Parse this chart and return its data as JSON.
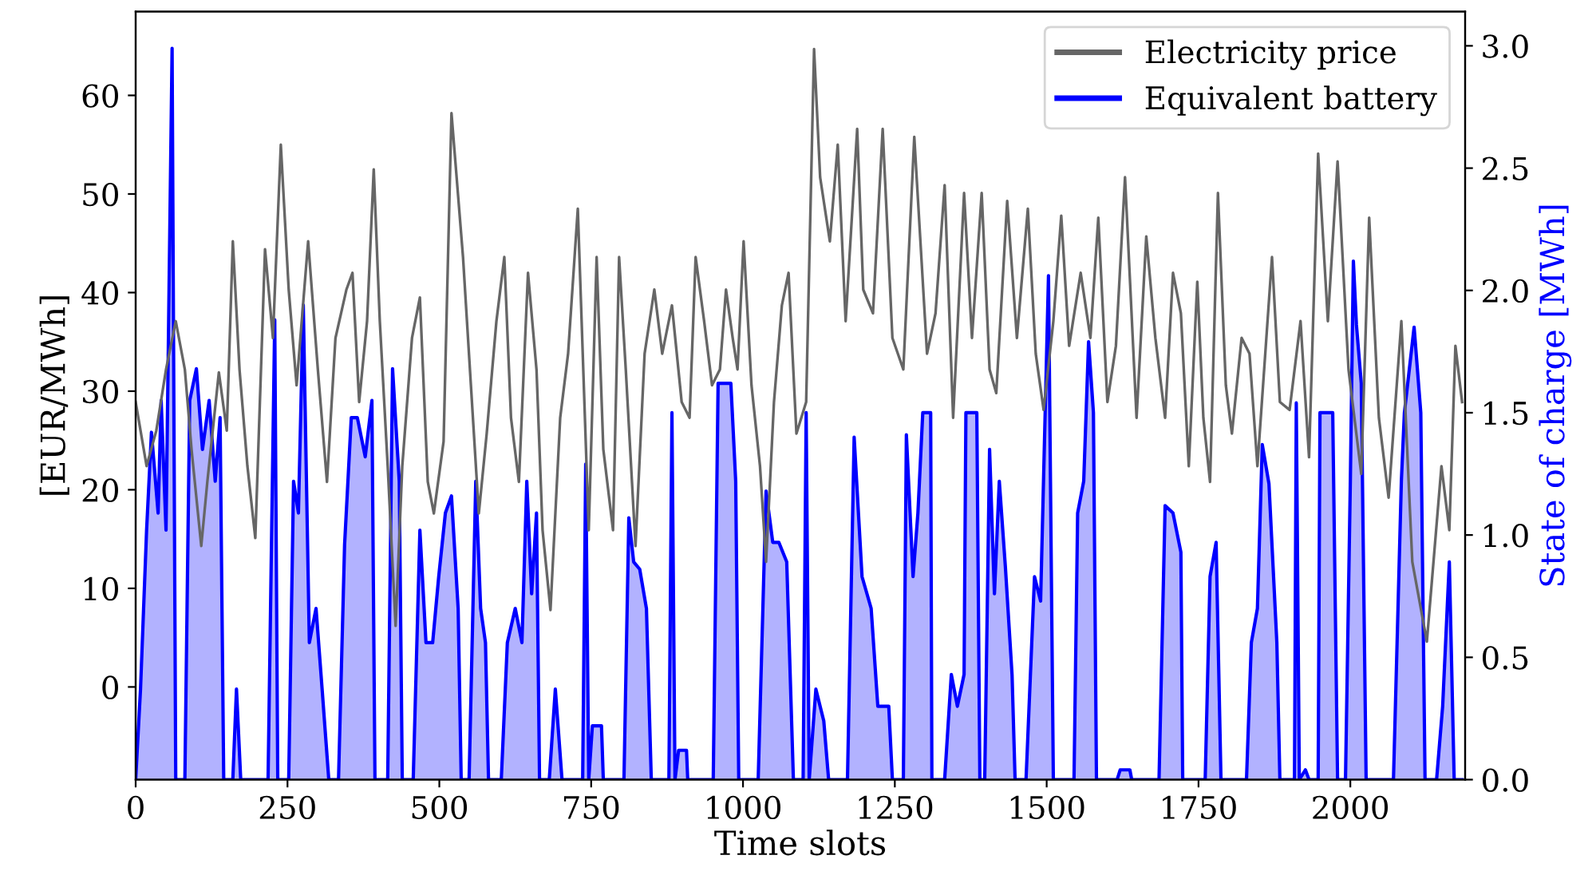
{
  "chart_data": {
    "type": "line",
    "xlabel": "Time slots",
    "ylabel": "[EUR/MWh]",
    "y2label": "State of charge [MWh]",
    "legend": "top right",
    "grid": false,
    "xlim": [
      0,
      2189
    ],
    "xticks": [
      0,
      250,
      500,
      750,
      1000,
      1250,
      1500,
      1750,
      2000
    ],
    "ylim": [
      -9.4,
      68.5
    ],
    "yticks": [
      0,
      10,
      20,
      30,
      40,
      50,
      60
    ],
    "y2lim": [
      0,
      3.14
    ],
    "y2ticks": [
      {
        "value": 0,
        "label": "0.0"
      },
      {
        "value": 0.5,
        "label": "0.5"
      },
      {
        "value": 1,
        "label": "1.0"
      },
      {
        "value": 1.5,
        "label": "1.5"
      },
      {
        "value": 2,
        "label": "2.0"
      },
      {
        "value": 2.5,
        "label": "2.5"
      },
      {
        "value": 3,
        "label": "3.0"
      }
    ],
    "series": [
      {
        "name": "Electricity price",
        "color": "#666666",
        "x": [
          0,
          18,
          34,
          50,
          66,
          81,
          92,
          108,
          118,
          137,
          150,
          160,
          171,
          184,
          197,
          213,
          226,
          239,
          252,
          265,
          284,
          300,
          315,
          329,
          347,
          357,
          368,
          381,
          392,
          402,
          415,
          428,
          439,
          455,
          468,
          481,
          491,
          507,
          520,
          539,
          552,
          565,
          578,
          594,
          607,
          618,
          631,
          646,
          660,
          670,
          683,
          699,
          712,
          728,
          746,
          759,
          770,
          786,
          796,
          807,
          823,
          838,
          854,
          867,
          883,
          899,
          912,
          922,
          936,
          949,
          962,
          972,
          983,
          991,
          1001,
          1014,
          1028,
          1038,
          1051,
          1064,
          1075,
          1088,
          1104,
          1117,
          1127,
          1143,
          1156,
          1169,
          1188,
          1198,
          1214,
          1230,
          1246,
          1264,
          1282,
          1303,
          1317,
          1332,
          1346,
          1364,
          1377,
          1393,
          1406,
          1417,
          1435,
          1451,
          1469,
          1482,
          1495,
          1511,
          1524,
          1537,
          1556,
          1572,
          1585,
          1600,
          1614,
          1629,
          1648,
          1664,
          1679,
          1695,
          1708,
          1721,
          1734,
          1748,
          1758,
          1769,
          1782,
          1795,
          1805,
          1821,
          1834,
          1847,
          1871,
          1884,
          1900,
          1918,
          1932,
          1947,
          1963,
          1979,
          1997,
          2018,
          2031,
          2047,
          2063,
          2084,
          2102,
          2126,
          2150,
          2163,
          2173,
          2184
        ],
        "values": [
          28.9,
          22.4,
          26.0,
          32.2,
          37.1,
          32.2,
          24.1,
          14.3,
          20.8,
          31.9,
          26.0,
          45.2,
          32.2,
          22.4,
          15.1,
          44.4,
          35.4,
          55.0,
          40.3,
          30.6,
          45.2,
          32.2,
          20.8,
          35.4,
          40.3,
          42.0,
          28.9,
          37.1,
          52.5,
          37.1,
          22.4,
          6.2,
          22.4,
          35.4,
          39.5,
          20.8,
          17.6,
          24.9,
          58.2,
          43.6,
          30.6,
          17.6,
          25.7,
          37.1,
          43.6,
          27.3,
          20.8,
          42.0,
          32.2,
          15.9,
          7.8,
          27.3,
          33.8,
          48.5,
          15.9,
          43.6,
          24.1,
          15.9,
          43.6,
          32.2,
          14.3,
          33.8,
          40.3,
          33.8,
          38.7,
          28.9,
          27.3,
          43.6,
          37.1,
          30.6,
          32.2,
          40.3,
          35.4,
          32.2,
          45.2,
          30.6,
          22.4,
          12.7,
          28.9,
          38.7,
          42.0,
          25.7,
          28.9,
          64.7,
          51.7,
          45.2,
          55.0,
          37.1,
          56.6,
          40.3,
          37.9,
          56.6,
          35.4,
          32.2,
          55.8,
          33.8,
          37.9,
          50.9,
          27.3,
          50.1,
          35.4,
          50.1,
          32.2,
          29.8,
          49.3,
          35.4,
          48.5,
          33.8,
          28.1,
          37.1,
          47.8,
          34.6,
          42.0,
          35.4,
          47.6,
          28.9,
          34.6,
          51.7,
          27.3,
          45.7,
          35.4,
          27.3,
          42.0,
          37.9,
          22.4,
          41.1,
          27.3,
          20.8,
          50.1,
          30.6,
          25.7,
          35.4,
          33.8,
          22.4,
          43.6,
          28.9,
          28.1,
          37.1,
          23.3,
          54.1,
          37.1,
          53.3,
          32.2,
          21.6,
          47.6,
          27.3,
          19.2,
          37.1,
          12.7,
          4.6,
          22.4,
          15.9,
          34.6,
          28.9
        ]
      },
      {
        "name": "Equivalent battery",
        "type": "area",
        "axis": "y2",
        "color": "#0000ff",
        "x": [
          0,
          8,
          18,
          26,
          37,
          42,
          50,
          55,
          60,
          66,
          81,
          89,
          100,
          110,
          121,
          131,
          139,
          145,
          160,
          166,
          173,
          218,
          229,
          234,
          252,
          260,
          268,
          276,
          286,
          297,
          307,
          318,
          334,
          344,
          355,
          365,
          378,
          389,
          394,
          415,
          423,
          434,
          439,
          457,
          468,
          478,
          489,
          499,
          510,
          520,
          531,
          536,
          549,
          560,
          568,
          576,
          581,
          602,
          612,
          625,
          636,
          644,
          652,
          660,
          665,
          681,
          691,
          702,
          736,
          741,
          746,
          752,
          767,
          770,
          804,
          812,
          820,
          830,
          841,
          849,
          878,
          883,
          888,
          894,
          907,
          909,
          951,
          959,
          980,
          988,
          993,
          1025,
          1038,
          1049,
          1059,
          1072,
          1083,
          1099,
          1104,
          1109,
          1120,
          1133,
          1141,
          1172,
          1183,
          1196,
          1211,
          1222,
          1240,
          1246,
          1264,
          1269,
          1280,
          1288,
          1296,
          1309,
          1311,
          1332,
          1343,
          1353,
          1364,
          1367,
          1385,
          1390,
          1398,
          1406,
          1414,
          1422,
          1432,
          1443,
          1448,
          1466,
          1480,
          1490,
          1503,
          1511,
          1545,
          1551,
          1561,
          1569,
          1577,
          1582,
          1616,
          1621,
          1637,
          1640,
          1685,
          1695,
          1708,
          1721,
          1724,
          1761,
          1769,
          1779,
          1787,
          1829,
          1837,
          1847,
          1855,
          1866,
          1879,
          1884,
          1908,
          1911,
          1916,
          1926,
          1932,
          1947,
          1950,
          1971,
          1979,
          1992,
          2000,
          2005,
          2010,
          2018,
          2026,
          2071,
          2084,
          2089,
          2105,
          2116,
          2123,
          2142,
          2152,
          2163,
          2171,
          2184
        ],
        "values": [
          0,
          0.37,
          1.02,
          1.42,
          1.09,
          1.55,
          1.02,
          2.01,
          2.99,
          0,
          0,
          1.55,
          1.68,
          1.35,
          1.55,
          1.22,
          1.48,
          0,
          0,
          0.37,
          0,
          0,
          1.88,
          0,
          0,
          1.22,
          1.09,
          1.94,
          0.56,
          0.7,
          0.37,
          0,
          0,
          0.96,
          1.48,
          1.48,
          1.32,
          1.55,
          0,
          0,
          1.68,
          1.22,
          0,
          0,
          1.02,
          0.56,
          0.56,
          0.83,
          1.09,
          1.16,
          0.7,
          0,
          0,
          1.22,
          0.7,
          0.56,
          0,
          0,
          0.56,
          0.7,
          0.56,
          1.22,
          0.76,
          1.09,
          0,
          0,
          0.37,
          0,
          0,
          1.29,
          0,
          0.22,
          0.22,
          0,
          0,
          1.07,
          0.89,
          0.86,
          0.7,
          0,
          0,
          1.5,
          0,
          0.12,
          0.12,
          0,
          0,
          1.62,
          1.62,
          1.22,
          0,
          0,
          1.18,
          0.97,
          0.97,
          0.89,
          0,
          0,
          1.5,
          0,
          0.37,
          0.24,
          0,
          0,
          1.4,
          0.83,
          0.7,
          0.3,
          0.3,
          0,
          0,
          1.41,
          0.83,
          1.09,
          1.5,
          1.5,
          0,
          0,
          0.43,
          0.3,
          0.43,
          1.5,
          1.5,
          0,
          0,
          1.35,
          0.76,
          1.22,
          0.87,
          0.43,
          0,
          0,
          0.83,
          0.73,
          2.06,
          0,
          0,
          1.09,
          1.22,
          1.79,
          1.5,
          0,
          0,
          0.04,
          0.04,
          0,
          0,
          1.12,
          1.09,
          0.93,
          0,
          0,
          0.83,
          0.97,
          0,
          0,
          0.56,
          0.7,
          1.37,
          1.21,
          0.56,
          0,
          0,
          1.54,
          0,
          0.04,
          0,
          0,
          1.5,
          1.5,
          0,
          0,
          1.22,
          2.12,
          1.86,
          1.62,
          0,
          0,
          1.22,
          1.5,
          1.85,
          1.5,
          0,
          0,
          0.3,
          0.89,
          0,
          0
        ]
      }
    ]
  }
}
